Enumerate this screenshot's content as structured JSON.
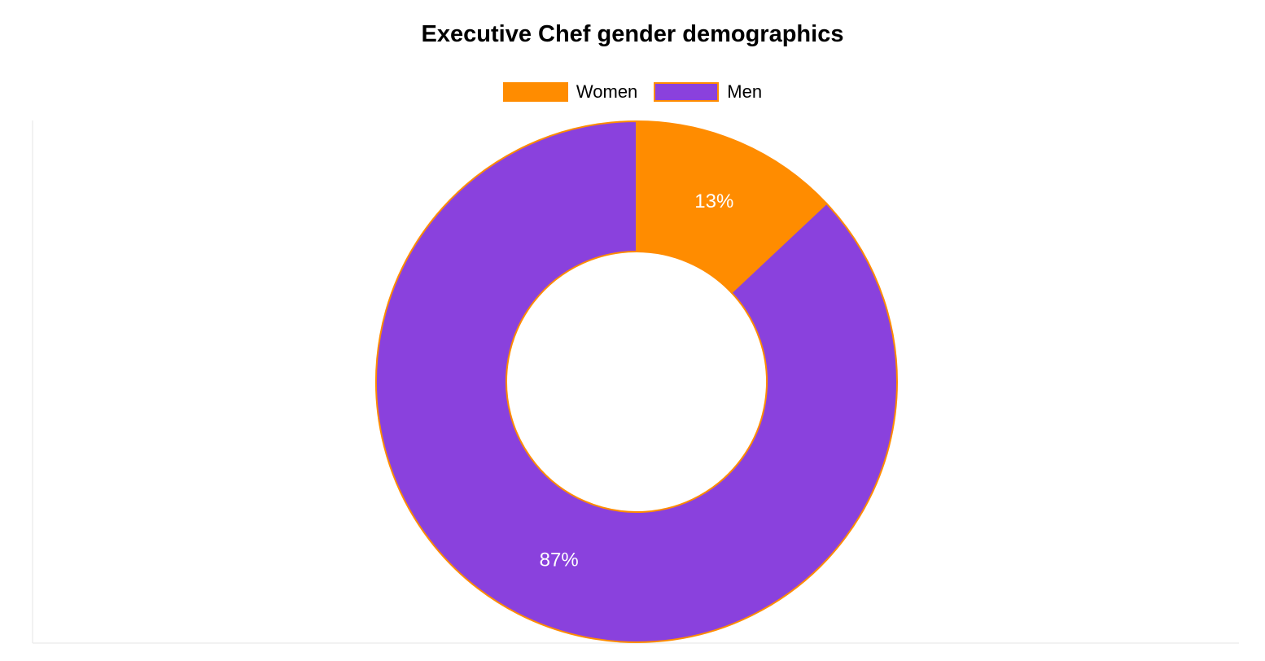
{
  "chart_data": {
    "type": "pie",
    "variant": "donut",
    "title": "Executive Chef gender demographics",
    "categories": [
      "Women",
      "Men"
    ],
    "values": [
      13,
      87
    ],
    "data_labels": [
      "13%",
      "87%"
    ],
    "unit": "%",
    "colors": [
      "#ff8c00",
      "#8a41dd"
    ],
    "border_color": "#ff8c00",
    "legend_position": "top",
    "grid": false
  }
}
